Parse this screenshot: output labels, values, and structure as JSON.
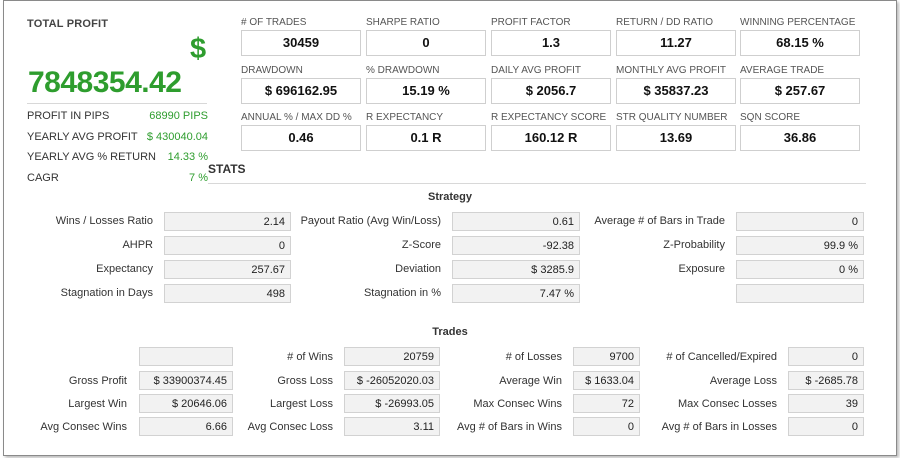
{
  "total_profit": {
    "title": "TOTAL PROFIT",
    "currency": "$",
    "value": "7848354.42",
    "rows": [
      {
        "label": "PROFIT IN PIPS",
        "value": "68990 PIPS"
      },
      {
        "label": "YEARLY AVG PROFIT",
        "value": "$ 430040.04"
      },
      {
        "label": "YEARLY AVG % RETURN",
        "value": "14.33 %"
      },
      {
        "label": "CAGR",
        "value": "7 %"
      }
    ]
  },
  "metrics": [
    {
      "label": "# OF TRADES",
      "value": "30459"
    },
    {
      "label": "SHARPE RATIO",
      "value": "0"
    },
    {
      "label": "PROFIT FACTOR",
      "value": "1.3"
    },
    {
      "label": "RETURN / DD RATIO",
      "value": "11.27"
    },
    {
      "label": "WINNING PERCENTAGE",
      "value": "68.15 %"
    },
    {
      "label": "DRAWDOWN",
      "value": "$ 696162.95"
    },
    {
      "label": "% DRAWDOWN",
      "value": "15.19 %"
    },
    {
      "label": "DAILY AVG PROFIT",
      "value": "$ 2056.7"
    },
    {
      "label": "MONTHLY AVG PROFIT",
      "value": "$ 35837.23"
    },
    {
      "label": "AVERAGE TRADE",
      "value": "$ 257.67"
    },
    {
      "label": "ANNUAL % / MAX DD %",
      "value": "0.46"
    },
    {
      "label": "R EXPECTANCY",
      "value": "0.1 R"
    },
    {
      "label": "R EXPECTANCY SCORE",
      "value": "160.12 R"
    },
    {
      "label": "STR QUALITY NUMBER",
      "value": "13.69"
    },
    {
      "label": "SQN SCORE",
      "value": "36.86"
    }
  ],
  "stats": {
    "title": "STATS",
    "strategy": {
      "heading": "Strategy",
      "rows": [
        [
          {
            "label": "Wins / Losses Ratio",
            "value": "2.14"
          },
          {
            "label": "Payout Ratio (Avg Win/Loss)",
            "value": "0.61"
          },
          {
            "label": "Average # of Bars in Trade",
            "value": "0"
          }
        ],
        [
          {
            "label": "AHPR",
            "value": "0"
          },
          {
            "label": "Z-Score",
            "value": "-92.38"
          },
          {
            "label": "Z-Probability",
            "value": "99.9 %"
          }
        ],
        [
          {
            "label": "Expectancy",
            "value": "257.67"
          },
          {
            "label": "Deviation",
            "value": "$ 3285.9"
          },
          {
            "label": "Exposure",
            "value": "0 %"
          }
        ],
        [
          {
            "label": "Stagnation in Days",
            "value": "498"
          },
          {
            "label": "Stagnation in %",
            "value": "7.47 %"
          },
          {
            "label": "",
            "value": ""
          }
        ]
      ]
    },
    "trades": {
      "heading": "Trades",
      "rows": [
        [
          {
            "label": "",
            "value": ""
          },
          {
            "label": "# of Wins",
            "value": "20759"
          },
          {
            "label": "# of Losses",
            "value": "9700"
          },
          {
            "label": "# of Cancelled/Expired",
            "value": "0"
          }
        ],
        [
          {
            "label": "Gross Profit",
            "value": "$ 33900374.45"
          },
          {
            "label": "Gross Loss",
            "value": "$ -26052020.03"
          },
          {
            "label": "Average Win",
            "value": "$ 1633.04"
          },
          {
            "label": "Average Loss",
            "value": "$ -2685.78"
          }
        ],
        [
          {
            "label": "Largest Win",
            "value": "$ 20646.06"
          },
          {
            "label": "Largest Loss",
            "value": "$ -26993.05"
          },
          {
            "label": "Max Consec Wins",
            "value": "72"
          },
          {
            "label": "Max Consec Losses",
            "value": "39"
          }
        ],
        [
          {
            "label": "Avg Consec Wins",
            "value": "6.66"
          },
          {
            "label": "Avg Consec Loss",
            "value": "3.11"
          },
          {
            "label": "Avg # of Bars in Wins",
            "value": "0"
          },
          {
            "label": "Avg # of Bars in Losses",
            "value": "0"
          }
        ]
      ]
    }
  }
}
